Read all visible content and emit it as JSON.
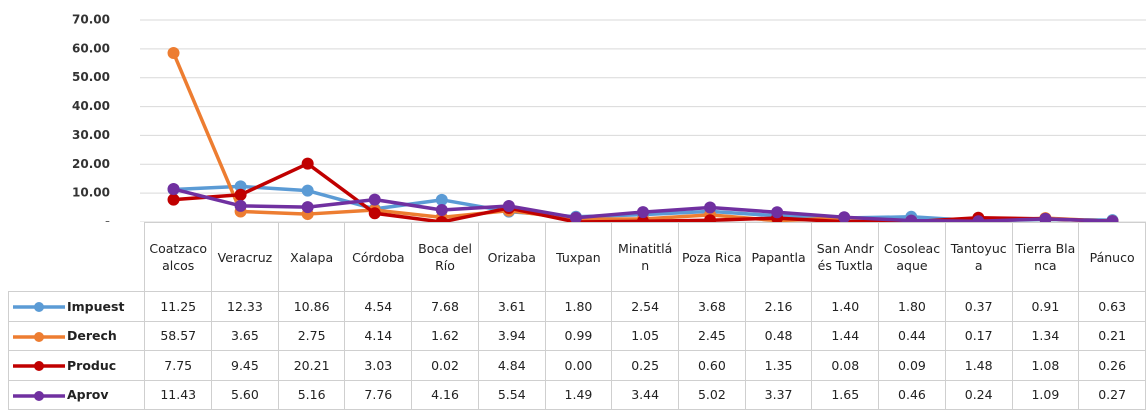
{
  "chart_data": {
    "type": "line",
    "categories": [
      "Coatzacoalcos",
      "Veracruz",
      "Xalapa",
      "Córdoba",
      "Boca del Río",
      "Orizaba",
      "Tuxpan",
      "Minatitlán",
      "Poza Rica",
      "Papantla",
      "San Andrés Tuxtla",
      "Cosoleacaque",
      "Tantoyuca",
      "Tierra Blanca",
      "Pánuco"
    ],
    "series": [
      {
        "name": "Impuest",
        "color": "#5b9bd5",
        "values": [
          11.25,
          12.33,
          10.86,
          4.54,
          7.68,
          3.61,
          1.8,
          2.54,
          3.68,
          2.16,
          1.4,
          1.8,
          0.37,
          0.91,
          0.63
        ],
        "value_labels": [
          "11.25",
          "12.33",
          "10.86",
          "4.54",
          "7.68",
          "3.61",
          "1.80",
          "2.54",
          "3.68",
          "2.16",
          "1.40",
          "1.80",
          "0.37",
          "0.91",
          "0.63"
        ]
      },
      {
        "name": "Derech",
        "color": "#ed7d31",
        "values": [
          58.57,
          3.65,
          2.75,
          4.14,
          1.62,
          3.94,
          0.99,
          1.05,
          2.45,
          0.48,
          1.44,
          0.44,
          0.17,
          1.34,
          0.21
        ],
        "value_labels": [
          "58.57",
          "3.65",
          "2.75",
          "4.14",
          "1.62",
          "3.94",
          "0.99",
          "1.05",
          "2.45",
          "0.48",
          "1.44",
          "0.44",
          "0.17",
          "1.34",
          "0.21"
        ]
      },
      {
        "name": "Produc",
        "color": "#c00000",
        "values": [
          7.75,
          9.45,
          20.21,
          3.03,
          0.02,
          4.84,
          0,
          0.25,
          0.6,
          1.35,
          0.08,
          0.09,
          1.48,
          1.08,
          0.26
        ],
        "value_labels": [
          "7.75",
          "9.45",
          "20.21",
          "3.03",
          "0.02",
          "4.84",
          "0.00",
          "0.25",
          "0.60",
          "1.35",
          "0.08",
          "0.09",
          "1.48",
          "1.08",
          "0.26"
        ]
      },
      {
        "name": "Aprov",
        "color": "#7030a0",
        "values": [
          11.43,
          5.6,
          5.16,
          7.76,
          4.16,
          5.54,
          1.49,
          3.44,
          5.02,
          3.37,
          1.65,
          0.46,
          0.24,
          1.09,
          0.27
        ],
        "value_labels": [
          "11.43",
          "5.60",
          "5.16",
          "7.76",
          "4.16",
          "5.54",
          "1.49",
          "3.44",
          "5.02",
          "3.37",
          "1.65",
          "0.46",
          "0.24",
          "1.09",
          "0.27"
        ]
      }
    ],
    "ylim": [
      0,
      70
    ],
    "yticks": [
      {
        "value": 0,
        "label": "-"
      },
      {
        "value": 10,
        "label": "10.00"
      },
      {
        "value": 20,
        "label": "20.00"
      },
      {
        "value": 30,
        "label": "30.00"
      },
      {
        "value": 40,
        "label": "40.00"
      },
      {
        "value": 50,
        "label": "50.00"
      },
      {
        "value": 60,
        "label": "60.00"
      },
      {
        "value": 70,
        "label": "70.00"
      }
    ],
    "grid": true
  }
}
